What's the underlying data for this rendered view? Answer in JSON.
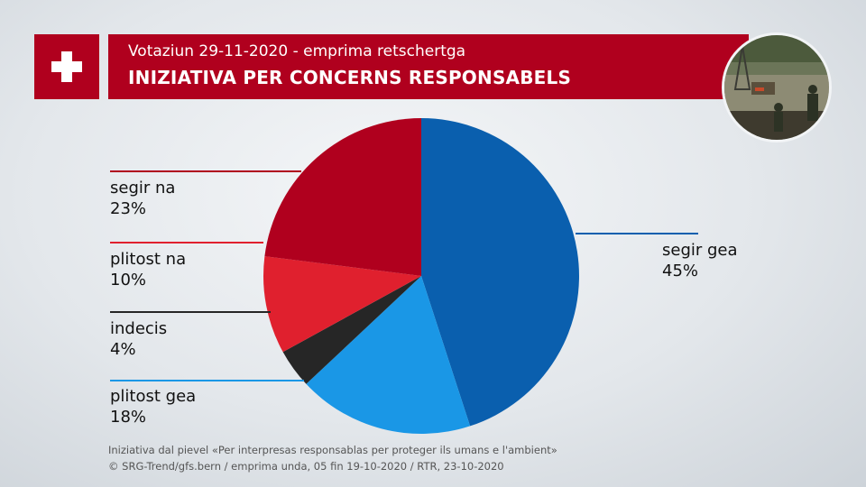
{
  "header": {
    "subtitle": "Votaziun 29-11-2020 - emprima retschertga",
    "title": "INIZIATIVA PER CONCERNS RESPONSABELS"
  },
  "icons": {
    "flag": "swiss-cross-icon",
    "photo": "mining-site-photo"
  },
  "colors": {
    "brand_red": "#b0001e",
    "segir_na": "#b0001e",
    "plitost_na": "#e0202e",
    "indecis": "#262626",
    "plitost_gea": "#1a97e6",
    "segir_gea": "#0a5fae"
  },
  "chart_data": {
    "type": "pie",
    "slices": [
      {
        "label": "segir gea",
        "value": 45,
        "display": "45%",
        "color": "#0a5fae"
      },
      {
        "label": "plitost gea",
        "value": 18,
        "display": "18%",
        "color": "#1a97e6"
      },
      {
        "label": "indecis",
        "value": 4,
        "display": "4%",
        "color": "#262626"
      },
      {
        "label": "plitost na",
        "value": 10,
        "display": "10%",
        "color": "#e0202e"
      },
      {
        "label": "segir na",
        "value": 23,
        "display": "23%",
        "color": "#b0001e"
      }
    ]
  },
  "footer": {
    "line1": "Iniziativa dal pievel «Per interpresas responsablas per proteger ils umans e l'ambient»",
    "line2": "© SRG-Trend/gfs.bern  /  emprima unda, 05 fin 19-10-2020  / RTR, 23-10-2020"
  }
}
